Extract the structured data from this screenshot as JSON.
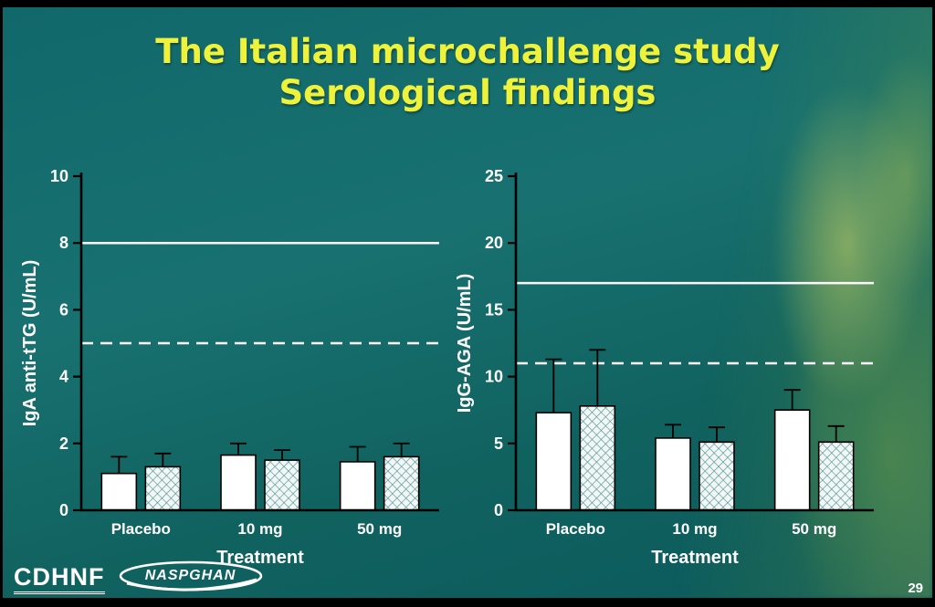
{
  "slide": {
    "title_line1": "The Italian microchallenge study",
    "title_line2": "Serological findings",
    "page_number": "29"
  },
  "logos": {
    "cdhnf": "CDHNF",
    "naspghan": "NASPGHAN"
  },
  "colors": {
    "background_teal": "#156a6c",
    "title_yellow": "#eff23a",
    "label_white": "#ffffff",
    "axis_black": "#000000",
    "bar_white": "#ffffff",
    "hatch_teal": "#4d9293"
  },
  "chart_data": [
    {
      "type": "bar",
      "title": "",
      "ylabel": "IgA anti-tTG (U/mL)",
      "xlabel": "Treatment",
      "categories": [
        "Placebo",
        "10 mg",
        "50 mg"
      ],
      "ylim": [
        0,
        10
      ],
      "yticks": [
        0,
        2,
        4,
        6,
        8,
        10
      ],
      "grid": false,
      "legend": "none",
      "series": [
        {
          "name": "solid-white",
          "style": "solid",
          "values": [
            1.1,
            1.65,
            1.45
          ],
          "errors": [
            0.5,
            0.35,
            0.45
          ]
        },
        {
          "name": "hatched",
          "style": "hatched",
          "values": [
            1.3,
            1.5,
            1.6
          ],
          "errors": [
            0.4,
            0.3,
            0.4
          ]
        }
      ],
      "reference_lines": [
        {
          "value": 8,
          "style": "solid"
        },
        {
          "value": 5,
          "style": "dashed"
        }
      ]
    },
    {
      "type": "bar",
      "title": "",
      "ylabel": "IgG-AGA (U/mL)",
      "xlabel": "Treatment",
      "categories": [
        "Placebo",
        "10 mg",
        "50 mg"
      ],
      "ylim": [
        0,
        25
      ],
      "yticks": [
        0,
        5,
        10,
        15,
        20,
        25
      ],
      "grid": false,
      "legend": "none",
      "series": [
        {
          "name": "solid-white",
          "style": "solid",
          "values": [
            7.3,
            5.4,
            7.5
          ],
          "errors": [
            4.0,
            1.0,
            1.5
          ]
        },
        {
          "name": "hatched",
          "style": "hatched",
          "values": [
            7.8,
            5.1,
            5.1
          ],
          "errors": [
            4.2,
            1.1,
            1.2
          ]
        }
      ],
      "reference_lines": [
        {
          "value": 17,
          "style": "solid"
        },
        {
          "value": 11,
          "style": "dashed"
        }
      ]
    }
  ]
}
